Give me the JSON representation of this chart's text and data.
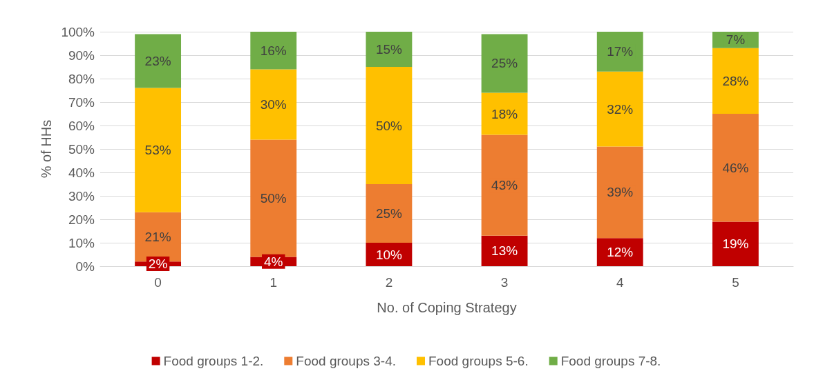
{
  "chart_data": {
    "type": "bar",
    "stacked": true,
    "xlabel": "No. of Coping Strategy",
    "ylabel": "% of HHs",
    "categories": [
      "0",
      "1",
      "2",
      "3",
      "4",
      "5"
    ],
    "series": [
      {
        "name": "Food groups 1-2.",
        "color": "#c00000",
        "values": [
          2,
          4,
          10,
          13,
          12,
          19
        ],
        "value_labels": [
          "2%",
          "4%",
          "10%",
          "13%",
          "12%",
          "19%"
        ]
      },
      {
        "name": "Food groups 3-4.",
        "color": "#ed7d31",
        "values": [
          21,
          50,
          25,
          43,
          39,
          46
        ],
        "value_labels": [
          "21%",
          "50%",
          "25%",
          "43%",
          "39%",
          "46%"
        ]
      },
      {
        "name": "Food groups 5-6.",
        "color": "#ffc000",
        "values": [
          53,
          30,
          50,
          18,
          32,
          28
        ],
        "value_labels": [
          "53%",
          "30%",
          "50%",
          "18%",
          "32%",
          "28%"
        ]
      },
      {
        "name": "Food groups 7-8.",
        "color": "#70ad47",
        "values": [
          23,
          16,
          15,
          25,
          17,
          7
        ],
        "value_labels": [
          "23%",
          "16%",
          "15%",
          "25%",
          "17%",
          "7%"
        ]
      }
    ],
    "ylim": [
      0,
      100
    ],
    "yticks": [
      {
        "value": 0,
        "label": "0%"
      },
      {
        "value": 10,
        "label": "10%"
      },
      {
        "value": 20,
        "label": "20%"
      },
      {
        "value": 30,
        "label": "30%"
      },
      {
        "value": 40,
        "label": "40%"
      },
      {
        "value": 50,
        "label": "50%"
      },
      {
        "value": 60,
        "label": "60%"
      },
      {
        "value": 70,
        "label": "70%"
      },
      {
        "value": 80,
        "label": "80%"
      },
      {
        "value": 90,
        "label": "90%"
      },
      {
        "value": 100,
        "label": "100%"
      }
    ],
    "grid": "y",
    "legend": "bottom"
  }
}
